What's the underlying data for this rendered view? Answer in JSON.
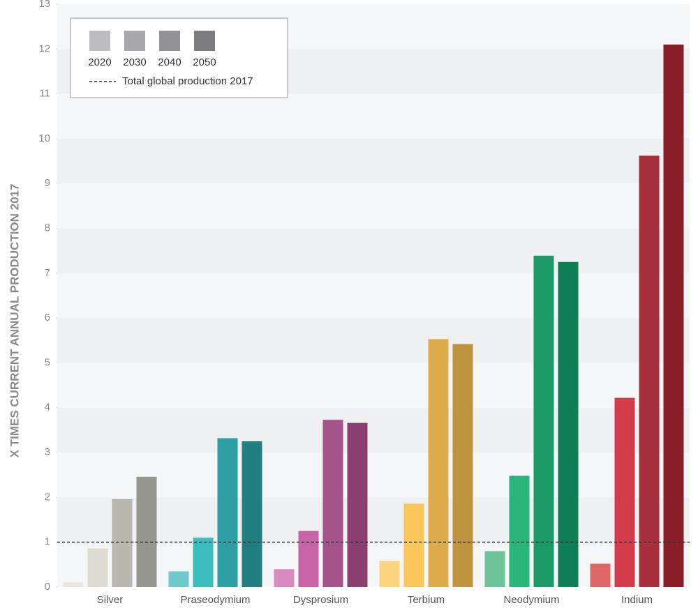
{
  "chart_data": {
    "type": "bar",
    "y_label": "X TIMES CURRENT ANNUAL PRODUCTION 2017",
    "categories": [
      "Silver",
      "Praseodymium",
      "Dysprosium",
      "Terbium",
      "Neodymium",
      "Indium"
    ],
    "series": [
      {
        "name": "2020",
        "color": "#bdbdc0",
        "colors": [
          "#e8e6df",
          "#6fc8cb",
          "#d98bbf",
          "#fdd47e",
          "#6cc496",
          "#dd6766"
        ],
        "values": [
          0.1,
          0.35,
          0.4,
          0.58,
          0.8,
          0.52
        ]
      },
      {
        "name": "2030",
        "color": "#a8a8ab",
        "colors": [
          "#dedbd2",
          "#3bbdbd",
          "#c864a5",
          "#fac85a",
          "#2ab67a",
          "#d33d4a"
        ],
        "values": [
          0.86,
          1.1,
          1.25,
          1.86,
          2.48,
          4.22
        ]
      },
      {
        "name": "2040",
        "color": "#939396",
        "colors": [
          "#b9b8b0",
          "#2ea0a3",
          "#a4538b",
          "#deac4a",
          "#1b9a68",
          "#a8303c"
        ],
        "values": [
          1.96,
          3.32,
          3.73,
          5.53,
          7.39,
          9.62
        ]
      },
      {
        "name": "2050",
        "color": "#7d7d80",
        "colors": [
          "#969690",
          "#217f80",
          "#8b406f",
          "#be9441",
          "#0e7e56",
          "#8a1f2a"
        ],
        "values": [
          2.46,
          3.25,
          3.66,
          5.42,
          7.25,
          12.1
        ]
      }
    ],
    "reference_line": {
      "value": 1,
      "label": "Total global production 2017",
      "color": "#333333"
    },
    "ylim": [
      0,
      13
    ],
    "yticks": [
      0,
      1,
      2,
      3,
      4,
      5,
      6,
      7,
      8,
      9,
      10,
      11,
      12,
      13
    ],
    "banded_background": true,
    "legend_position": "upper left"
  }
}
